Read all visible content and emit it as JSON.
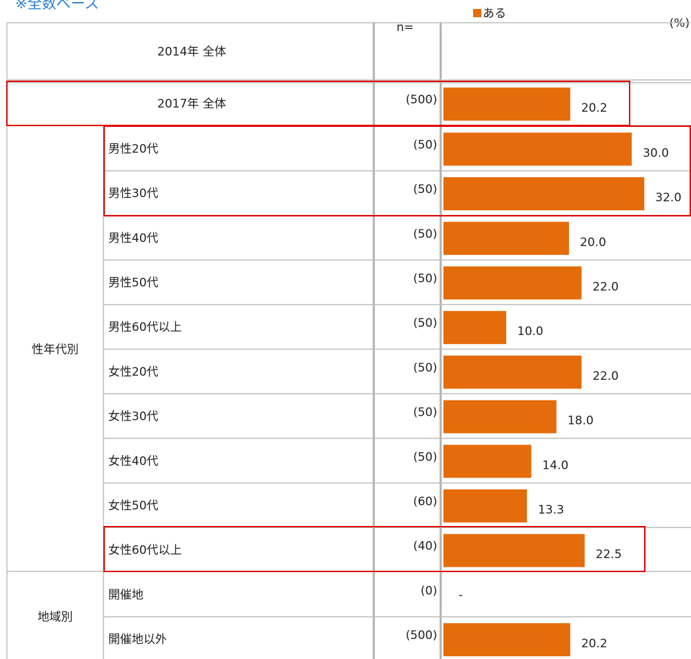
{
  "chart_data": {
    "type": "bar",
    "note": "※全数ベース",
    "n_header": "n=",
    "unit": "(%)",
    "categories": [
      "2014年 全体",
      "2017年 全体",
      "男性20代",
      "男性30代",
      "男性40代",
      "男性50代",
      "男性60代以上",
      "女性20代",
      "女性30代",
      "女性40代",
      "女性50代",
      "女性60代以上",
      "開催地",
      "開催地以外"
    ],
    "category_groups": [
      null,
      null,
      "性年代別",
      "性年代別",
      "性年代別",
      "性年代別",
      "性年代別",
      "性年代別",
      "性年代別",
      "性年代別",
      "性年代別",
      "性年代別",
      "地域別",
      "地域別"
    ],
    "n_labels": [
      null,
      "(500)",
      "(50)",
      "(50)",
      "(50)",
      "(50)",
      "(50)",
      "(50)",
      "(50)",
      "(50)",
      "(60)",
      "(40)",
      "(0)",
      "(500)"
    ],
    "series": [
      {
        "name": "ある",
        "color": "#e46c0a",
        "values": [
          null,
          20.2,
          30.0,
          32.0,
          20.0,
          22.0,
          10.0,
          22.0,
          18.0,
          14.0,
          13.3,
          22.5,
          null,
          20.2
        ],
        "value_labels": [
          null,
          "20.2",
          "30.0",
          "32.0",
          "20.0",
          "22.0",
          "10.0",
          "22.0",
          "18.0",
          "14.0",
          "13.3",
          "22.5",
          "-",
          "20.2"
        ]
      }
    ],
    "xlim": [
      0,
      39
    ]
  }
}
